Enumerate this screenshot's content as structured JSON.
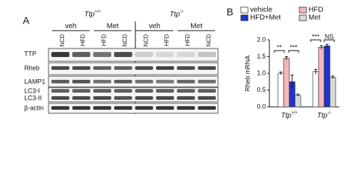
{
  "panel_a": {
    "label": "A",
    "genotypes": [
      {
        "name": "Ttp",
        "sup": "+/+"
      },
      {
        "name": "Ttp",
        "sup": "-/-"
      }
    ],
    "treatments": [
      "veh",
      "Met",
      "veh",
      "Met"
    ],
    "lanes": [
      "NCD",
      "HFD",
      "HFD",
      "NCD",
      "NCD",
      "HFD",
      "HFD",
      "NCD"
    ],
    "rows": [
      "TTP",
      "Rheb",
      "LAMP1",
      "LC3-I",
      "LC3-II",
      "β-actin"
    ]
  },
  "chart_data": {
    "type": "bar",
    "panel_label": "B",
    "y_label": "Rheb mRNA",
    "categories": [
      {
        "name": "Ttp",
        "sup": "+/+"
      },
      {
        "name": "Ttp",
        "sup": "-/-"
      }
    ],
    "series": [
      {
        "name": "vehicle",
        "color": "#ffffff",
        "values": [
          1.0,
          1.05
        ],
        "errors": [
          0.04,
          0.07
        ]
      },
      {
        "name": "HFD",
        "color": "#f4b8b8",
        "values": [
          1.45,
          1.78
        ],
        "errors": [
          0.05,
          0.05
        ]
      },
      {
        "name": "HFD+Met",
        "color": "#2233cc",
        "values": [
          0.75,
          1.82
        ],
        "errors": [
          0.2,
          0.05
        ]
      },
      {
        "name": "Met",
        "color": "#d9d9d9",
        "values": [
          0.35,
          0.88
        ],
        "errors": [
          0.03,
          0.04
        ]
      }
    ],
    "ylim": [
      0,
      2.0
    ],
    "yticks": [
      {
        "value": 0,
        "label": "0.0"
      },
      {
        "value": 0.5,
        "label": "0.5"
      },
      {
        "value": 1.0,
        "label": "1.0"
      },
      {
        "value": 1.5,
        "label": "1.5"
      },
      {
        "value": 2.0,
        "label": "2.0"
      }
    ],
    "annotations": [
      "**",
      "***",
      "***",
      "NS"
    ]
  }
}
